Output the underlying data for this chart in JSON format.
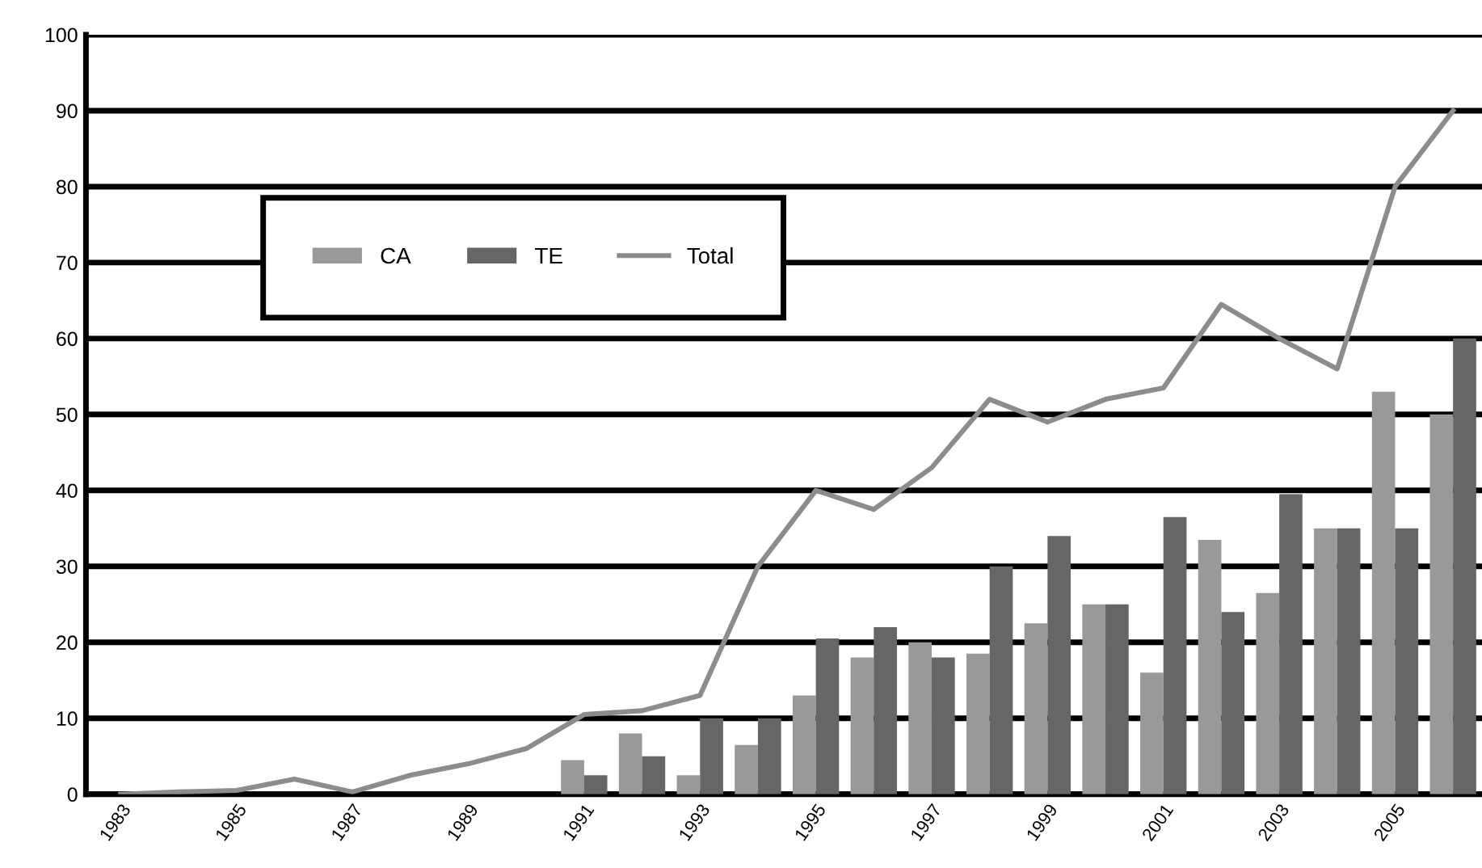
{
  "chart_data": {
    "type": "bar",
    "categories": [
      "1983",
      null,
      "1985",
      null,
      "1987",
      null,
      "1989",
      null,
      "1991",
      null,
      "1993",
      null,
      "1995",
      null,
      "1997",
      null,
      "1999",
      null,
      "2001",
      null,
      "2003",
      null,
      "2005",
      null
    ],
    "series": [
      {
        "name": "CA",
        "color": "#999999",
        "values": [
          null,
          null,
          null,
          null,
          null,
          null,
          null,
          null,
          4.5,
          8,
          2.5,
          6.5,
          13,
          18,
          20,
          18.5,
          22.5,
          25,
          16,
          33.5,
          26.5,
          35,
          53,
          50
        ]
      },
      {
        "name": "TE",
        "color": "#666666",
        "values": [
          null,
          null,
          null,
          null,
          null,
          null,
          null,
          null,
          2.5,
          5,
          10,
          10,
          20.5,
          22,
          18,
          30,
          34,
          25,
          36.5,
          24,
          39.5,
          35,
          35,
          60
        ]
      },
      {
        "name": "Total",
        "type": "line",
        "color": "#8c8c8c",
        "values": [
          0,
          0.3,
          0.5,
          2,
          0.3,
          2.5,
          4,
          6,
          10.5,
          11,
          13,
          30,
          40,
          37.5,
          43,
          52,
          49,
          52,
          53.5,
          64.5,
          60,
          56,
          80,
          90
        ]
      }
    ],
    "ylim": [
      0,
      100
    ],
    "yticks": [
      0,
      10,
      20,
      30,
      40,
      50,
      60,
      70,
      80,
      90,
      100
    ],
    "grid": "y",
    "legend": "top left"
  }
}
